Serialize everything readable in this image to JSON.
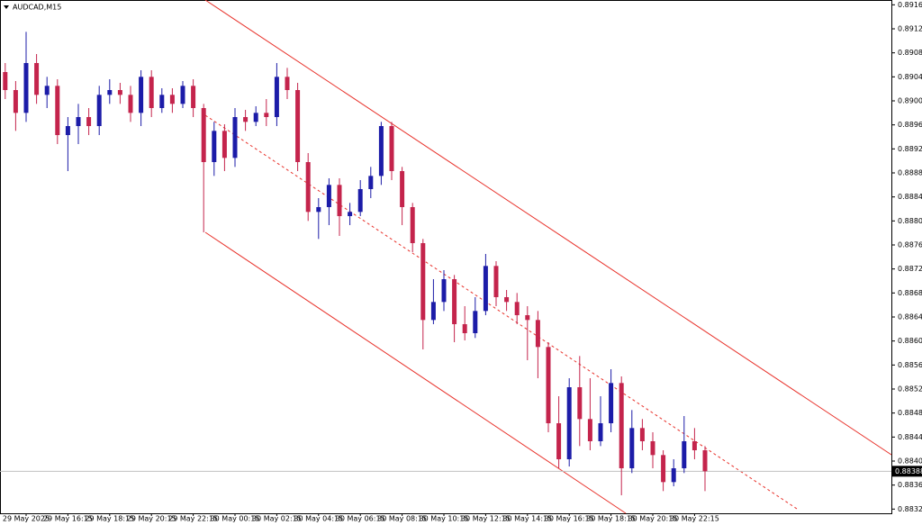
{
  "chart_data": {
    "type": "candlestick",
    "title": "AUDCAD,M15",
    "categories": [
      null,
      null,
      "29 May 2025",
      null,
      null,
      null,
      "29 May 16:15",
      null,
      null,
      null,
      "29 May 18:15",
      null,
      null,
      null,
      "29 May 20:15",
      null,
      null,
      null,
      "29 May 22:15",
      null,
      null,
      null,
      "30 May 00:15",
      null,
      null,
      null,
      "30 May 02:15",
      null,
      null,
      null,
      "30 May 04:15",
      null,
      null,
      null,
      "30 May 06:15",
      null,
      null,
      null,
      "30 May 08:15",
      null,
      null,
      null,
      "30 May 10:15",
      null,
      null,
      null,
      "30 May 12:15",
      null,
      null,
      null,
      "30 May 14:15",
      null,
      null,
      null,
      "30 May 16:15",
      null,
      null,
      null,
      "30 May 18:15",
      null,
      null,
      null,
      "30 May 20:15",
      null,
      null,
      null,
      "30 May 22:15",
      null
    ],
    "open": [
      0.89053,
      0.89023,
      0.88985,
      0.89068,
      0.89015,
      0.8903,
      0.88948,
      0.88963,
      0.88978,
      0.88963,
      0.89015,
      0.89023,
      0.89015,
      0.88985,
      0.89045,
      0.88993,
      0.89015,
      0.89,
      0.8903,
      0.88993,
      0.88903,
      0.88955,
      0.8891,
      0.88978,
      0.8897,
      0.88985,
      0.88978,
      0.89045,
      0.89023,
      0.88903,
      0.8882,
      0.88828,
      0.88865,
      0.88813,
      0.8882,
      0.88858,
      0.8888,
      0.88963,
      0.88888,
      0.88828,
      0.88768,
      0.8864,
      0.8867,
      0.88708,
      0.88633,
      0.88618,
      0.88655,
      0.8873,
      0.88678,
      0.8867,
      0.88648,
      0.8864,
      0.88595,
      0.88468,
      0.88408,
      0.88528,
      0.88475,
      0.88438,
      0.88468,
      0.88535,
      0.88393,
      0.8846,
      0.88438,
      0.88415,
      0.8837,
      0.88393,
      0.88438,
      0.88423
    ],
    "high": [
      0.89068,
      0.89038,
      0.8912,
      0.89083,
      0.89045,
      0.89041,
      0.88978,
      0.89,
      0.88993,
      0.8903,
      0.89041,
      0.89035,
      0.8903,
      0.89056,
      0.89056,
      0.89026,
      0.89026,
      0.89038,
      0.89041,
      0.89,
      0.8897,
      0.88966,
      0.88993,
      0.8899,
      0.88996,
      0.89008,
      0.89068,
      0.8906,
      0.89035,
      0.88918,
      0.88843,
      0.88876,
      0.88876,
      0.88835,
      0.88873,
      0.88895,
      0.8897,
      0.8897,
      0.88895,
      0.88835,
      0.88775,
      0.88708,
      0.88723,
      0.88715,
      0.88663,
      0.88678,
      0.8875,
      0.88738,
      0.8869,
      0.88685,
      0.88663,
      0.88655,
      0.88603,
      0.88513,
      0.88543,
      0.8858,
      0.88543,
      0.88513,
      0.88558,
      0.88546,
      0.8849,
      0.88475,
      0.88453,
      0.88423,
      0.88408,
      0.8848,
      0.8846,
      0.8843
    ],
    "low": [
      0.89008,
      0.88955,
      0.8897,
      0.89,
      0.88993,
      0.88933,
      0.88888,
      0.88933,
      0.88948,
      0.88948,
      0.89,
      0.89,
      0.8897,
      0.88963,
      0.88978,
      0.88985,
      0.88985,
      0.88993,
      0.88978,
      0.88786,
      0.8888,
      0.88888,
      0.88895,
      0.88955,
      0.88963,
      0.88963,
      0.88963,
      0.89008,
      0.88888,
      0.88805,
      0.88775,
      0.88798,
      0.8878,
      0.88798,
      0.88813,
      0.88843,
      0.88865,
      0.88873,
      0.88798,
      0.88753,
      0.88591,
      0.88633,
      0.88655,
      0.88603,
      0.88606,
      0.8861,
      0.88648,
      0.88663,
      0.88655,
      0.88633,
      0.88573,
      0.88543,
      0.88453,
      0.88393,
      0.88396,
      0.8843,
      0.88423,
      0.8843,
      0.88453,
      0.88348,
      0.88385,
      0.88423,
      0.88393,
      0.88355,
      0.88363,
      0.88385,
      0.88408,
      0.88355
    ],
    "close": [
      0.89023,
      0.88985,
      0.89068,
      0.89015,
      0.8903,
      0.88948,
      0.88963,
      0.88978,
      0.88963,
      0.89015,
      0.89023,
      0.89015,
      0.88985,
      0.89045,
      0.88993,
      0.89015,
      0.89,
      0.8903,
      0.88993,
      0.88903,
      0.88955,
      0.8891,
      0.88978,
      0.8897,
      0.88985,
      0.88978,
      0.89045,
      0.89023,
      0.88903,
      0.8882,
      0.88828,
      0.88865,
      0.88813,
      0.8882,
      0.88858,
      0.8888,
      0.88963,
      0.88888,
      0.88828,
      0.88768,
      0.8864,
      0.8867,
      0.88708,
      0.88633,
      0.88618,
      0.88655,
      0.8873,
      0.88678,
      0.8867,
      0.88648,
      0.8864,
      0.88595,
      0.88468,
      0.88408,
      0.88528,
      0.88475,
      0.88438,
      0.88468,
      0.88535,
      0.88393,
      0.8846,
      0.88438,
      0.88415,
      0.8837,
      0.88393,
      0.88438,
      0.88423,
      0.88388
    ],
    "up_color": "#1c1ca8",
    "down_color": "#c4244c",
    "current_price": 0.88388,
    "ylim": [
      0.88318,
      0.89173
    ],
    "yticks": [
      0.89165,
      0.89125,
      0.89085,
      0.89045,
      0.89005,
      0.88965,
      0.88925,
      0.88885,
      0.88845,
      0.88805,
      0.88765,
      0.88725,
      0.88685,
      0.88645,
      0.88605,
      0.88565,
      0.88525,
      0.88485,
      0.88445,
      0.88405,
      0.88365,
      0.88325
    ]
  }
}
